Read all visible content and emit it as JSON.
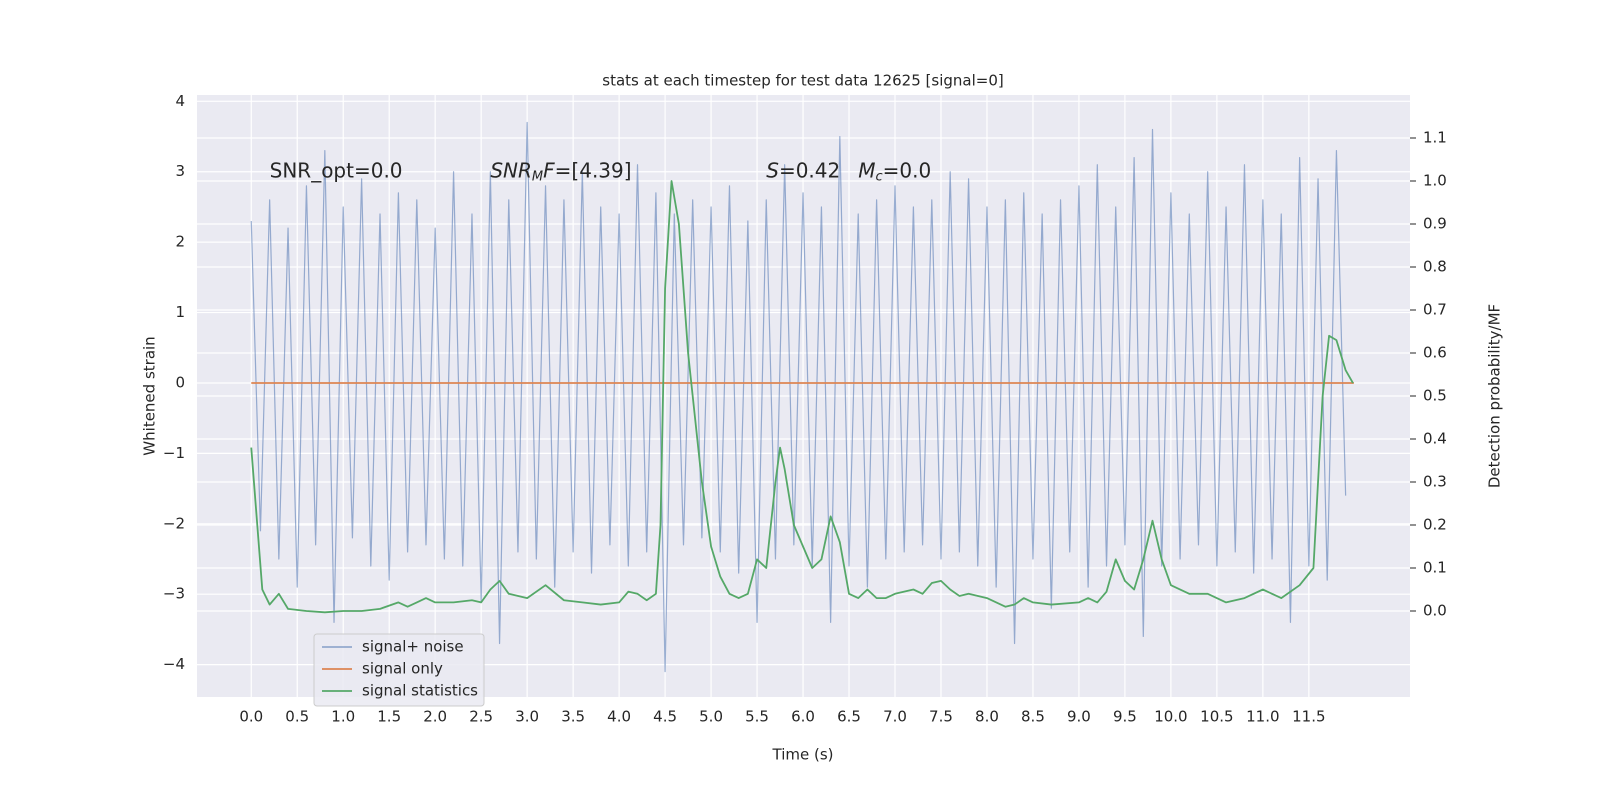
{
  "chart_data": {
    "type": "line",
    "title": "stats at each timestep for test data 12625 [signal=0]",
    "x_label": "Time (s)",
    "y_label": "Whitened strain",
    "y2_label": "Detection probability/MF",
    "grid": true,
    "xlim": [
      -0.59,
      12.6
    ],
    "ylim": [
      -4.46,
      4.09
    ],
    "y2lim": [
      -0.2,
      1.2
    ],
    "xticks": [
      {
        "value": 0,
        "label": "0.0"
      },
      {
        "value": 0.5,
        "label": "0.5"
      },
      {
        "value": 1,
        "label": "1.0"
      },
      {
        "value": 1.5,
        "label": "1.5"
      },
      {
        "value": 2,
        "label": "2.0"
      },
      {
        "value": 2.5,
        "label": "2.5"
      },
      {
        "value": 3,
        "label": "3.0"
      },
      {
        "value": 3.5,
        "label": "3.5"
      },
      {
        "value": 4,
        "label": "4.0"
      },
      {
        "value": 4.5,
        "label": "4.5"
      },
      {
        "value": 5,
        "label": "5.0"
      },
      {
        "value": 5.5,
        "label": "5.5"
      },
      {
        "value": 6,
        "label": "6.0"
      },
      {
        "value": 6.5,
        "label": "6.5"
      },
      {
        "value": 7,
        "label": "7.0"
      },
      {
        "value": 7.5,
        "label": "7.5"
      },
      {
        "value": 8,
        "label": "8.0"
      },
      {
        "value": 8.5,
        "label": "8.5"
      },
      {
        "value": 9,
        "label": "9.0"
      },
      {
        "value": 9.5,
        "label": "9.5"
      },
      {
        "value": 10,
        "label": "10.0"
      },
      {
        "value": 10.5,
        "label": "10.5"
      },
      {
        "value": 11,
        "label": "11.0"
      },
      {
        "value": 11.5,
        "label": "11.5"
      }
    ],
    "yticks": [
      {
        "value": -4,
        "label": "−4"
      },
      {
        "value": -3,
        "label": "−3"
      },
      {
        "value": -2,
        "label": "−2"
      },
      {
        "value": -1,
        "label": "−1"
      },
      0,
      1,
      2,
      3,
      4
    ],
    "y2ticks": [
      {
        "value": 0,
        "label": "0.0"
      },
      {
        "value": 0.1,
        "label": "0.1"
      },
      {
        "value": 0.2,
        "label": "0.2"
      },
      {
        "value": 0.3,
        "label": "0.3"
      },
      {
        "value": 0.4,
        "label": "0.4"
      },
      {
        "value": 0.5,
        "label": "0.5"
      },
      {
        "value": 0.6,
        "label": "0.6"
      },
      {
        "value": 0.7,
        "label": "0.7"
      },
      {
        "value": 0.8,
        "label": "0.8"
      },
      {
        "value": 0.9,
        "label": "0.9"
      },
      {
        "value": 1,
        "label": "1.0"
      },
      {
        "value": 1.1,
        "label": "1.1"
      }
    ],
    "series": [
      {
        "name": "signal+ noise",
        "color": "#4c72b0",
        "x": [
          0,
          0.1,
          0.2,
          0.3,
          0.4,
          0.5,
          0.6,
          0.7,
          0.8,
          0.9,
          1,
          1.1,
          1.2,
          1.3,
          1.4,
          1.5,
          1.6,
          1.7,
          1.8,
          1.9,
          2,
          2.1,
          2.2,
          2.3,
          2.4,
          2.5,
          2.6,
          2.7,
          2.8,
          2.9,
          3,
          3.1,
          3.2,
          3.3,
          3.4,
          3.5,
          3.6,
          3.7,
          3.8,
          3.9,
          4,
          4.1,
          4.2,
          4.3,
          4.4,
          4.5,
          4.6,
          4.7,
          4.8,
          4.9,
          5,
          5.1,
          5.2,
          5.3,
          5.4,
          5.5,
          5.6,
          5.7,
          5.8,
          5.9,
          6,
          6.1,
          6.2,
          6.3,
          6.4,
          6.5,
          6.6,
          6.7,
          6.8,
          6.9,
          7,
          7.1,
          7.2,
          7.3,
          7.4,
          7.5,
          7.6,
          7.7,
          7.8,
          7.9,
          8,
          8.1,
          8.2,
          8.3,
          8.4,
          8.5,
          8.6,
          8.7,
          8.8,
          8.9,
          9,
          9.1,
          9.2,
          9.3,
          9.4,
          9.5,
          9.6,
          9.7,
          9.8,
          9.9,
          10,
          10.1,
          10.2,
          10.3,
          10.4,
          10.5,
          10.6,
          10.7,
          10.8,
          10.9,
          11,
          11.1,
          11.2,
          11.3,
          11.4,
          11.5,
          11.6,
          11.7,
          11.8,
          11.9
        ],
        "values": [
          2.3,
          -2.1,
          2.6,
          -2.5,
          2.2,
          -2.9,
          2.8,
          -2.3,
          3.3,
          -3.4,
          2.5,
          -2.2,
          2.9,
          -2.6,
          2.4,
          -2.8,
          2.7,
          -2.4,
          2.6,
          -2.3,
          2.2,
          -2.5,
          3.0,
          -2.6,
          2.4,
          -3.1,
          3.0,
          -3.7,
          2.6,
          -2.4,
          3.7,
          -2.5,
          2.8,
          -2.9,
          2.6,
          -2.4,
          3.0,
          -2.7,
          2.5,
          -2.3,
          2.4,
          -2.6,
          3.1,
          -2.4,
          2.7,
          -4.1,
          2.4,
          -2.3,
          2.6,
          -2.2,
          2.5,
          -2.4,
          2.8,
          -2.7,
          2.3,
          -3.4,
          2.6,
          -2.5,
          3.1,
          -2.3,
          2.7,
          -2.6,
          2.5,
          -3.4,
          3.5,
          -2.6,
          2.4,
          -2.9,
          2.6,
          -2.5,
          2.8,
          -2.4,
          2.5,
          -2.3,
          2.6,
          -2.5,
          3.0,
          -2.4,
          2.9,
          -2.6,
          2.5,
          -2.9,
          2.6,
          -3.7,
          2.7,
          -2.5,
          2.4,
          -3.2,
          2.6,
          -2.4,
          2.8,
          -2.9,
          3.1,
          -2.6,
          2.5,
          -2.3,
          3.2,
          -3.6,
          3.6,
          -2.6,
          2.7,
          -2.5,
          2.4,
          -2.3,
          3.0,
          -2.6,
          2.5,
          -2.4,
          3.1,
          -2.7,
          2.6,
          -2.5,
          2.4,
          -3.4,
          3.2,
          -2.6,
          2.9,
          -2.8,
          3.3,
          -1.6
        ]
      },
      {
        "name": "signal only",
        "color": "#dd8452",
        "x": [
          0,
          11.99
        ],
        "values": [
          0,
          0
        ]
      },
      {
        "name": "signal statistics",
        "color": "#55a868",
        "axis": "y2",
        "x": [
          0,
          0.12,
          0.2,
          0.3,
          0.4,
          0.6,
          0.8,
          1.0,
          1.2,
          1.4,
          1.6,
          1.7,
          1.8,
          1.9,
          2.0,
          2.2,
          2.4,
          2.5,
          2.6,
          2.7,
          2.8,
          3.0,
          3.2,
          3.4,
          3.6,
          3.8,
          4.0,
          4.1,
          4.2,
          4.3,
          4.4,
          4.45,
          4.5,
          4.57,
          4.65,
          4.75,
          4.9,
          5.0,
          5.1,
          5.2,
          5.3,
          5.4,
          5.5,
          5.6,
          5.7,
          5.75,
          5.8,
          5.9,
          6.0,
          6.1,
          6.2,
          6.3,
          6.4,
          6.5,
          6.6,
          6.7,
          6.8,
          6.9,
          7.0,
          7.2,
          7.3,
          7.4,
          7.5,
          7.6,
          7.7,
          7.8,
          8.0,
          8.2,
          8.3,
          8.4,
          8.5,
          8.7,
          9.0,
          9.1,
          9.2,
          9.3,
          9.4,
          9.5,
          9.6,
          9.7,
          9.8,
          9.9,
          10.0,
          10.2,
          10.4,
          10.6,
          10.8,
          11.0,
          11.2,
          11.4,
          11.55,
          11.65,
          11.72,
          11.8,
          11.9,
          11.98
        ],
        "values": [
          0.38,
          0.05,
          0.015,
          0.04,
          0.005,
          0.0,
          -0.003,
          0.0,
          0.0,
          0.005,
          0.02,
          0.01,
          0.02,
          0.03,
          0.02,
          0.02,
          0.025,
          0.02,
          0.05,
          0.07,
          0.04,
          0.03,
          0.06,
          0.025,
          0.02,
          0.015,
          0.02,
          0.045,
          0.04,
          0.025,
          0.04,
          0.2,
          0.75,
          1.0,
          0.9,
          0.6,
          0.3,
          0.15,
          0.08,
          0.04,
          0.03,
          0.04,
          0.12,
          0.1,
          0.3,
          0.38,
          0.33,
          0.2,
          0.15,
          0.1,
          0.12,
          0.22,
          0.16,
          0.04,
          0.03,
          0.05,
          0.03,
          0.03,
          0.04,
          0.05,
          0.04,
          0.065,
          0.07,
          0.05,
          0.035,
          0.04,
          0.03,
          0.01,
          0.015,
          0.03,
          0.02,
          0.015,
          0.02,
          0.03,
          0.02,
          0.045,
          0.12,
          0.07,
          0.05,
          0.12,
          0.21,
          0.12,
          0.06,
          0.04,
          0.04,
          0.02,
          0.03,
          0.05,
          0.03,
          0.06,
          0.1,
          0.5,
          0.64,
          0.63,
          0.56,
          0.53
        ]
      }
    ],
    "annotations": [
      {
        "parts": [
          {
            "text": "SNR_opt=0.0"
          }
        ]
      },
      {
        "parts": [
          {
            "text": "SNR",
            "italic": true
          },
          {
            "text": "M",
            "italic": true,
            "sub": true
          },
          {
            "text": "F",
            "italic": true
          },
          {
            "text": "=[4.39]"
          }
        ]
      },
      {
        "parts": [
          {
            "text": "S",
            "italic": true
          },
          {
            "text": "=0.42"
          }
        ]
      },
      {
        "parts": [
          {
            "text": "M",
            "italic": true
          },
          {
            "text": "c",
            "italic": true,
            "sub": true
          },
          {
            "text": "=0.0"
          }
        ]
      }
    ]
  }
}
